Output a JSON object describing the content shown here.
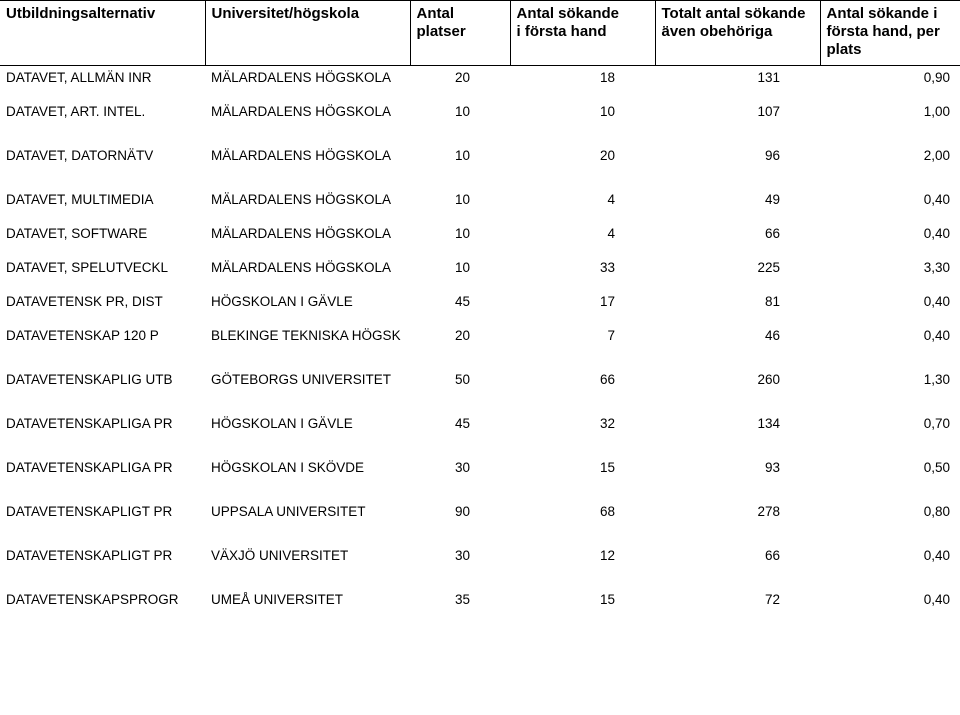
{
  "header": {
    "col1": {
      "l1": "",
      "l2": "Utbildningsalternativ"
    },
    "col2": {
      "l1": "",
      "l2": "Universitet/högskola"
    },
    "col3": {
      "l1": "Antal",
      "l2": "platser"
    },
    "col4": {
      "l1": "Antal sökande",
      "l2": "i första hand"
    },
    "col5": {
      "l1": "Totalt antal sökande",
      "l2": "även obehöriga"
    },
    "col6": {
      "l1": "Antal sökande i",
      "l2": "första hand, per plats"
    }
  },
  "rows": [
    {
      "alt": "DATAVET, ALLMÄN INR",
      "uni": "MÄLARDALENS HÖGSKOLA",
      "platser": "20",
      "first": "18",
      "total": "131",
      "ratio": "0,90",
      "tight": true
    },
    {
      "alt": "DATAVET, ART. INTEL.",
      "uni": "MÄLARDALENS HÖGSKOLA",
      "platser": "10",
      "first": "10",
      "total": "107",
      "ratio": "1,00",
      "tight": false
    },
    {
      "alt": "DATAVET, DATORNÄTV",
      "uni": "MÄLARDALENS HÖGSKOLA",
      "platser": "10",
      "first": "20",
      "total": "96",
      "ratio": "2,00",
      "tight": false
    },
    {
      "alt": "DATAVET, MULTIMEDIA",
      "uni": "MÄLARDALENS HÖGSKOLA",
      "platser": "10",
      "first": "4",
      "total": "49",
      "ratio": "0,40",
      "tight": false
    },
    {
      "alt": "DATAVET, SOFTWARE",
      "uni": "MÄLARDALENS HÖGSKOLA",
      "platser": "10",
      "first": "4",
      "total": "66",
      "ratio": "0,40",
      "tight": true
    },
    {
      "alt": "DATAVET, SPELUTVECKL",
      "uni": "MÄLARDALENS HÖGSKOLA",
      "platser": "10",
      "first": "33",
      "total": "225",
      "ratio": "3,30",
      "tight": false
    },
    {
      "alt": "DATAVETENSK PR, DIST",
      "uni": "HÖGSKOLAN I GÄVLE",
      "platser": "45",
      "first": "17",
      "total": "81",
      "ratio": "0,40",
      "tight": true
    },
    {
      "alt": "DATAVETENSKAP 120 P",
      "uni": "BLEKINGE TEKNISKA HÖGSK",
      "platser": "20",
      "first": "7",
      "total": "46",
      "ratio": "0,40",
      "tight": false
    },
    {
      "alt": "DATAVETENSKAPLIG UTB",
      "uni": "GÖTEBORGS UNIVERSITET",
      "platser": "50",
      "first": "66",
      "total": "260",
      "ratio": "1,30",
      "tight": false
    },
    {
      "alt": "DATAVETENSKAPLIGA PR",
      "uni": "HÖGSKOLAN I GÄVLE",
      "platser": "45",
      "first": "32",
      "total": "134",
      "ratio": "0,70",
      "tight": false
    },
    {
      "alt": "DATAVETENSKAPLIGA PR",
      "uni": "HÖGSKOLAN I SKÖVDE",
      "platser": "30",
      "first": "15",
      "total": "93",
      "ratio": "0,50",
      "tight": false
    },
    {
      "alt": "DATAVETENSKAPLIGT PR",
      "uni": "UPPSALA UNIVERSITET",
      "platser": "90",
      "first": "68",
      "total": "278",
      "ratio": "0,80",
      "tight": false
    },
    {
      "alt": "DATAVETENSKAPLIGT PR",
      "uni": "VÄXJÖ UNIVERSITET",
      "platser": "30",
      "first": "12",
      "total": "66",
      "ratio": "0,40",
      "tight": false
    },
    {
      "alt": "DATAVETENSKAPSPROGR",
      "uni": "UMEÅ UNIVERSITET",
      "platser": "35",
      "first": "15",
      "total": "72",
      "ratio": "0,40",
      "tight": false
    }
  ]
}
